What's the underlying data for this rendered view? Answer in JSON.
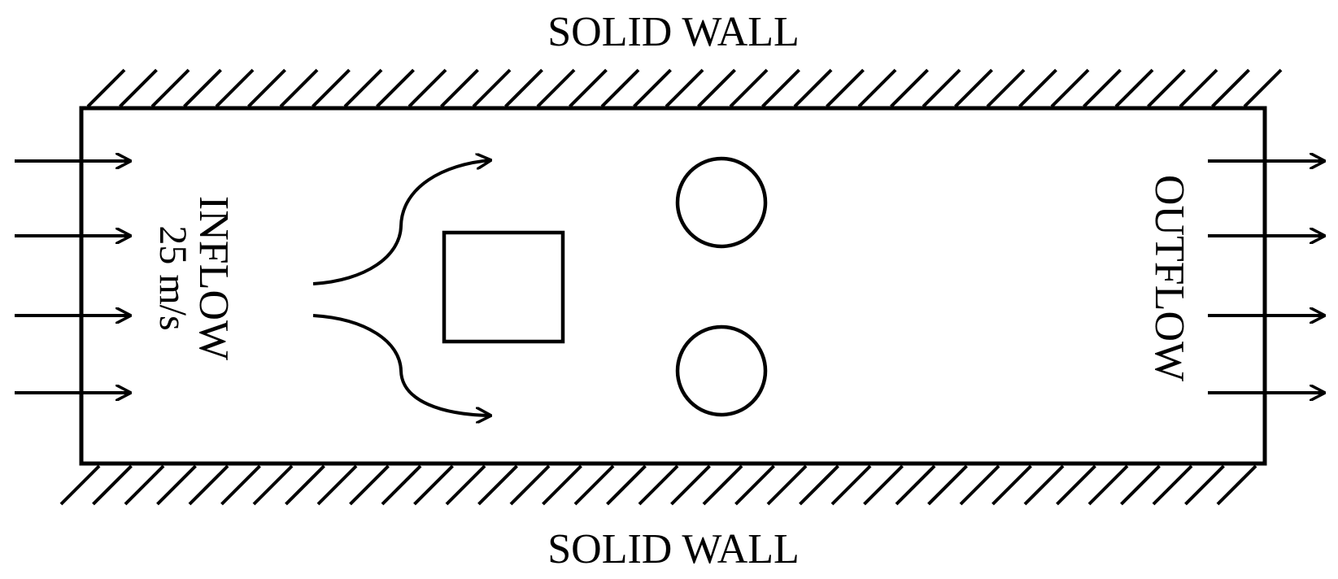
{
  "labels": {
    "top_wall": "SOLID WALL",
    "bottom_wall": "SOLID WALL",
    "inflow": "INFLOW",
    "inflow_speed": "25 m/s",
    "outflow": "OUTFLOW"
  },
  "colors": {
    "ink": "#000000",
    "background": "#ffffff"
  }
}
